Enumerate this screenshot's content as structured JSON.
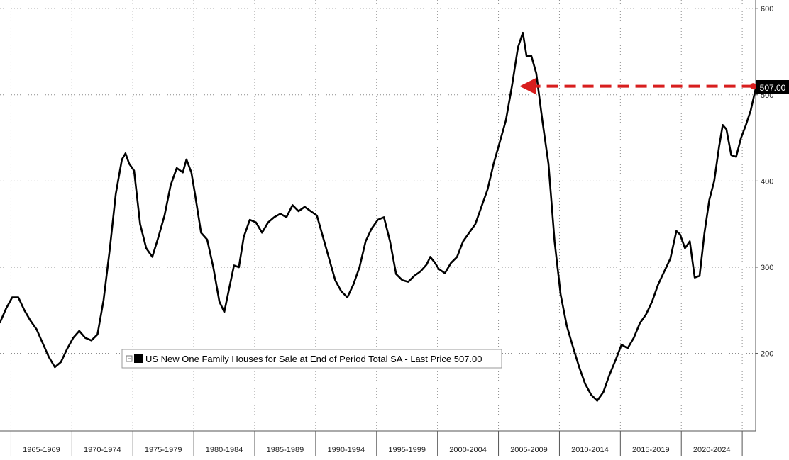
{
  "chart_data": {
    "type": "line",
    "title": "",
    "xlabel": "",
    "ylabel": "",
    "x_range": [
      1963,
      2025
    ],
    "ylim": [
      110,
      610
    ],
    "y_ticks": [
      200,
      300,
      400,
      500,
      600
    ],
    "x_tick_labels": [
      "1965-1969",
      "1970-1974",
      "1975-1979",
      "1980-1984",
      "1985-1989",
      "1990-1994",
      "1995-1999",
      "2000-2004",
      "2005-2009",
      "2010-2014",
      "2015-2019",
      "2020-2024"
    ],
    "grid": true,
    "y_axis_side": "right",
    "legend": {
      "placement": "bottom-left",
      "text": "US New One Family Houses for Sale at End of Period Total SA - Last Price 507.00"
    },
    "last_price_label": "507.00",
    "annotation": {
      "type": "dashed-arrow",
      "color": "#d81e1e",
      "from": [
        2024.8,
        510
      ],
      "to": [
        2006.3,
        510
      ]
    },
    "series": [
      {
        "name": "US New One Family Houses for Sale at End of Period Total SA",
        "color": "#000000",
        "points": [
          [
            1963.0,
            236
          ],
          [
            1963.5,
            252
          ],
          [
            1964.0,
            265
          ],
          [
            1964.5,
            265
          ],
          [
            1965.0,
            250
          ],
          [
            1965.5,
            238
          ],
          [
            1966.0,
            228
          ],
          [
            1966.5,
            212
          ],
          [
            1967.0,
            196
          ],
          [
            1967.5,
            184
          ],
          [
            1968.0,
            190
          ],
          [
            1968.5,
            205
          ],
          [
            1969.0,
            218
          ],
          [
            1969.5,
            226
          ],
          [
            1970.0,
            218
          ],
          [
            1970.5,
            215
          ],
          [
            1971.0,
            222
          ],
          [
            1971.5,
            262
          ],
          [
            1972.0,
            320
          ],
          [
            1972.5,
            385
          ],
          [
            1973.0,
            425
          ],
          [
            1973.3,
            432
          ],
          [
            1973.6,
            420
          ],
          [
            1974.0,
            412
          ],
          [
            1974.5,
            350
          ],
          [
            1975.0,
            322
          ],
          [
            1975.5,
            312
          ],
          [
            1976.0,
            335
          ],
          [
            1976.5,
            360
          ],
          [
            1977.0,
            395
          ],
          [
            1977.5,
            415
          ],
          [
            1978.0,
            410
          ],
          [
            1978.3,
            425
          ],
          [
            1978.7,
            410
          ],
          [
            1979.0,
            385
          ],
          [
            1979.5,
            340
          ],
          [
            1980.0,
            332
          ],
          [
            1980.5,
            300
          ],
          [
            1981.0,
            260
          ],
          [
            1981.4,
            248
          ],
          [
            1981.8,
            275
          ],
          [
            1982.2,
            302
          ],
          [
            1982.6,
            300
          ],
          [
            1983.0,
            335
          ],
          [
            1983.5,
            355
          ],
          [
            1984.0,
            352
          ],
          [
            1984.5,
            340
          ],
          [
            1985.0,
            352
          ],
          [
            1985.5,
            358
          ],
          [
            1986.0,
            362
          ],
          [
            1986.5,
            358
          ],
          [
            1987.0,
            372
          ],
          [
            1987.5,
            365
          ],
          [
            1988.0,
            370
          ],
          [
            1988.5,
            365
          ],
          [
            1989.0,
            360
          ],
          [
            1989.5,
            335
          ],
          [
            1990.0,
            310
          ],
          [
            1990.5,
            285
          ],
          [
            1991.0,
            272
          ],
          [
            1991.5,
            265
          ],
          [
            1992.0,
            280
          ],
          [
            1992.5,
            300
          ],
          [
            1993.0,
            330
          ],
          [
            1993.5,
            345
          ],
          [
            1994.0,
            355
          ],
          [
            1994.5,
            358
          ],
          [
            1995.0,
            330
          ],
          [
            1995.5,
            292
          ],
          [
            1996.0,
            285
          ],
          [
            1996.5,
            283
          ],
          [
            1997.0,
            290
          ],
          [
            1997.5,
            295
          ],
          [
            1998.0,
            303
          ],
          [
            1998.3,
            312
          ],
          [
            1998.7,
            305
          ],
          [
            1999.0,
            298
          ],
          [
            1999.5,
            293
          ],
          [
            2000.0,
            305
          ],
          [
            2000.5,
            312
          ],
          [
            2001.0,
            330
          ],
          [
            2001.5,
            340
          ],
          [
            2002.0,
            350
          ],
          [
            2002.5,
            370
          ],
          [
            2003.0,
            390
          ],
          [
            2003.5,
            420
          ],
          [
            2004.0,
            445
          ],
          [
            2004.5,
            470
          ],
          [
            2005.0,
            510
          ],
          [
            2005.5,
            555
          ],
          [
            2005.9,
            572
          ],
          [
            2006.2,
            545
          ],
          [
            2006.6,
            545
          ],
          [
            2007.0,
            525
          ],
          [
            2007.5,
            470
          ],
          [
            2008.0,
            420
          ],
          [
            2008.5,
            330
          ],
          [
            2009.0,
            268
          ],
          [
            2009.5,
            232
          ],
          [
            2010.0,
            208
          ],
          [
            2010.5,
            185
          ],
          [
            2011.0,
            165
          ],
          [
            2011.5,
            152
          ],
          [
            2012.0,
            145
          ],
          [
            2012.5,
            155
          ],
          [
            2013.0,
            175
          ],
          [
            2013.5,
            192
          ],
          [
            2014.0,
            210
          ],
          [
            2014.5,
            206
          ],
          [
            2015.0,
            218
          ],
          [
            2015.5,
            235
          ],
          [
            2016.0,
            245
          ],
          [
            2016.5,
            260
          ],
          [
            2017.0,
            280
          ],
          [
            2017.5,
            295
          ],
          [
            2018.0,
            310
          ],
          [
            2018.5,
            342
          ],
          [
            2018.8,
            338
          ],
          [
            2019.2,
            322
          ],
          [
            2019.6,
            330
          ],
          [
            2020.0,
            288
          ],
          [
            2020.4,
            290
          ],
          [
            2020.8,
            340
          ],
          [
            2021.2,
            378
          ],
          [
            2021.6,
            400
          ],
          [
            2022.0,
            440
          ],
          [
            2022.3,
            465
          ],
          [
            2022.6,
            460
          ],
          [
            2023.0,
            430
          ],
          [
            2023.4,
            428
          ],
          [
            2023.8,
            450
          ],
          [
            2024.2,
            465
          ],
          [
            2024.6,
            482
          ],
          [
            2025.0,
            507
          ]
        ]
      }
    ]
  }
}
